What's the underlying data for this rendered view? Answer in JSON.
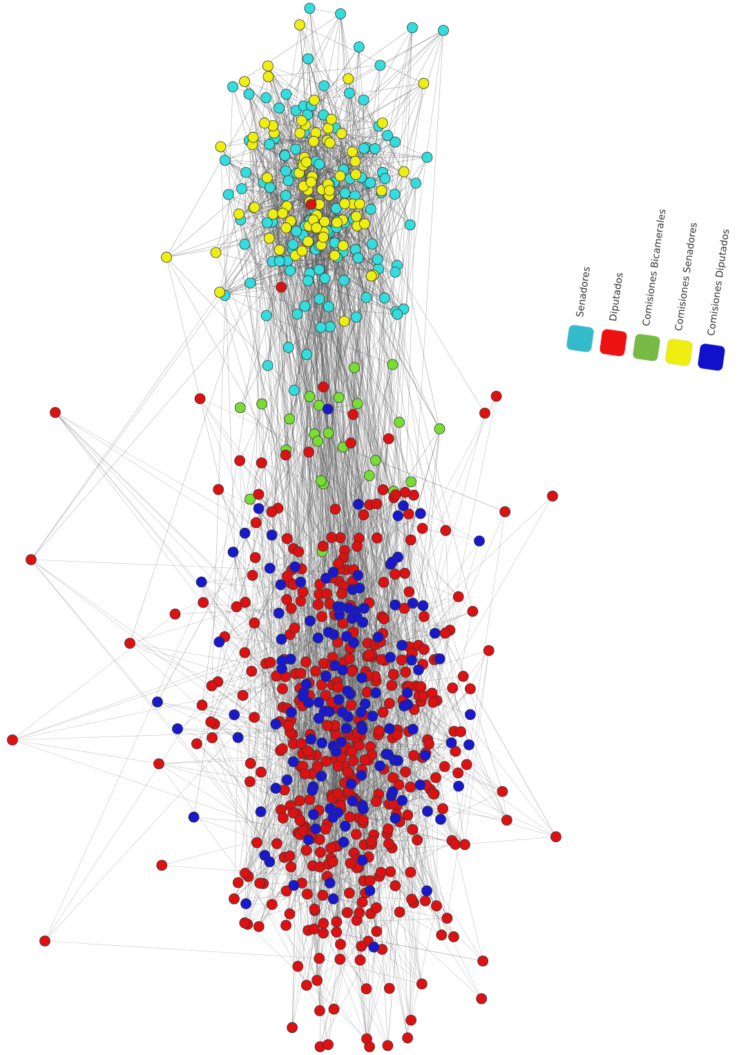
{
  "legend": {
    "items": [
      {
        "label": "Senadores",
        "color": "#33bbcc"
      },
      {
        "label": "Diputados",
        "color": "#ee1111"
      },
      {
        "label": "Comisiones Bicamerales",
        "color": "#77bb44"
      },
      {
        "label": "Comisiones Senadores",
        "color": "#eeee11"
      },
      {
        "label": "Comisiones Diputados",
        "color": "#1111cc"
      }
    ]
  },
  "node_colors": {
    "senadores": "#33dddd",
    "diputados": "#dd1111",
    "bicamerales": "#77dd33",
    "com_senadores": "#eeee11",
    "com_diputados": "#1818cc",
    "edge": "#555555"
  }
}
